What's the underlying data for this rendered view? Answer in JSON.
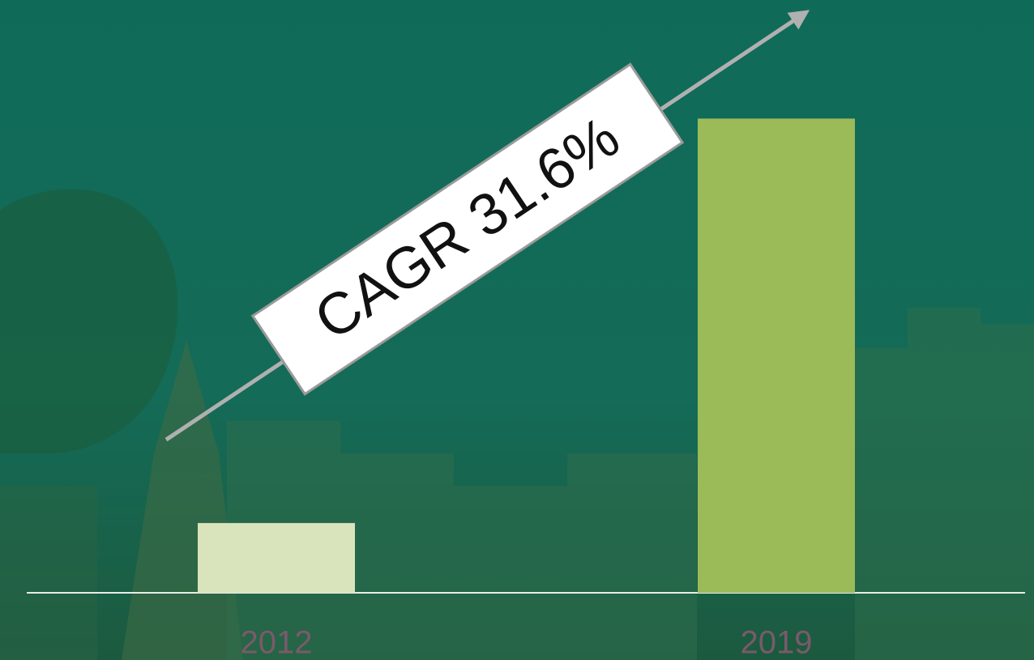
{
  "chart_data": {
    "type": "bar",
    "annotation": "CAGR 31.6%",
    "categories": [
      "2012",
      "2019"
    ],
    "values": [
      1,
      6.8
    ],
    "colors": [
      "#d9e4bd",
      "#9bbb59"
    ],
    "ylim": [
      0,
      8.5
    ]
  }
}
